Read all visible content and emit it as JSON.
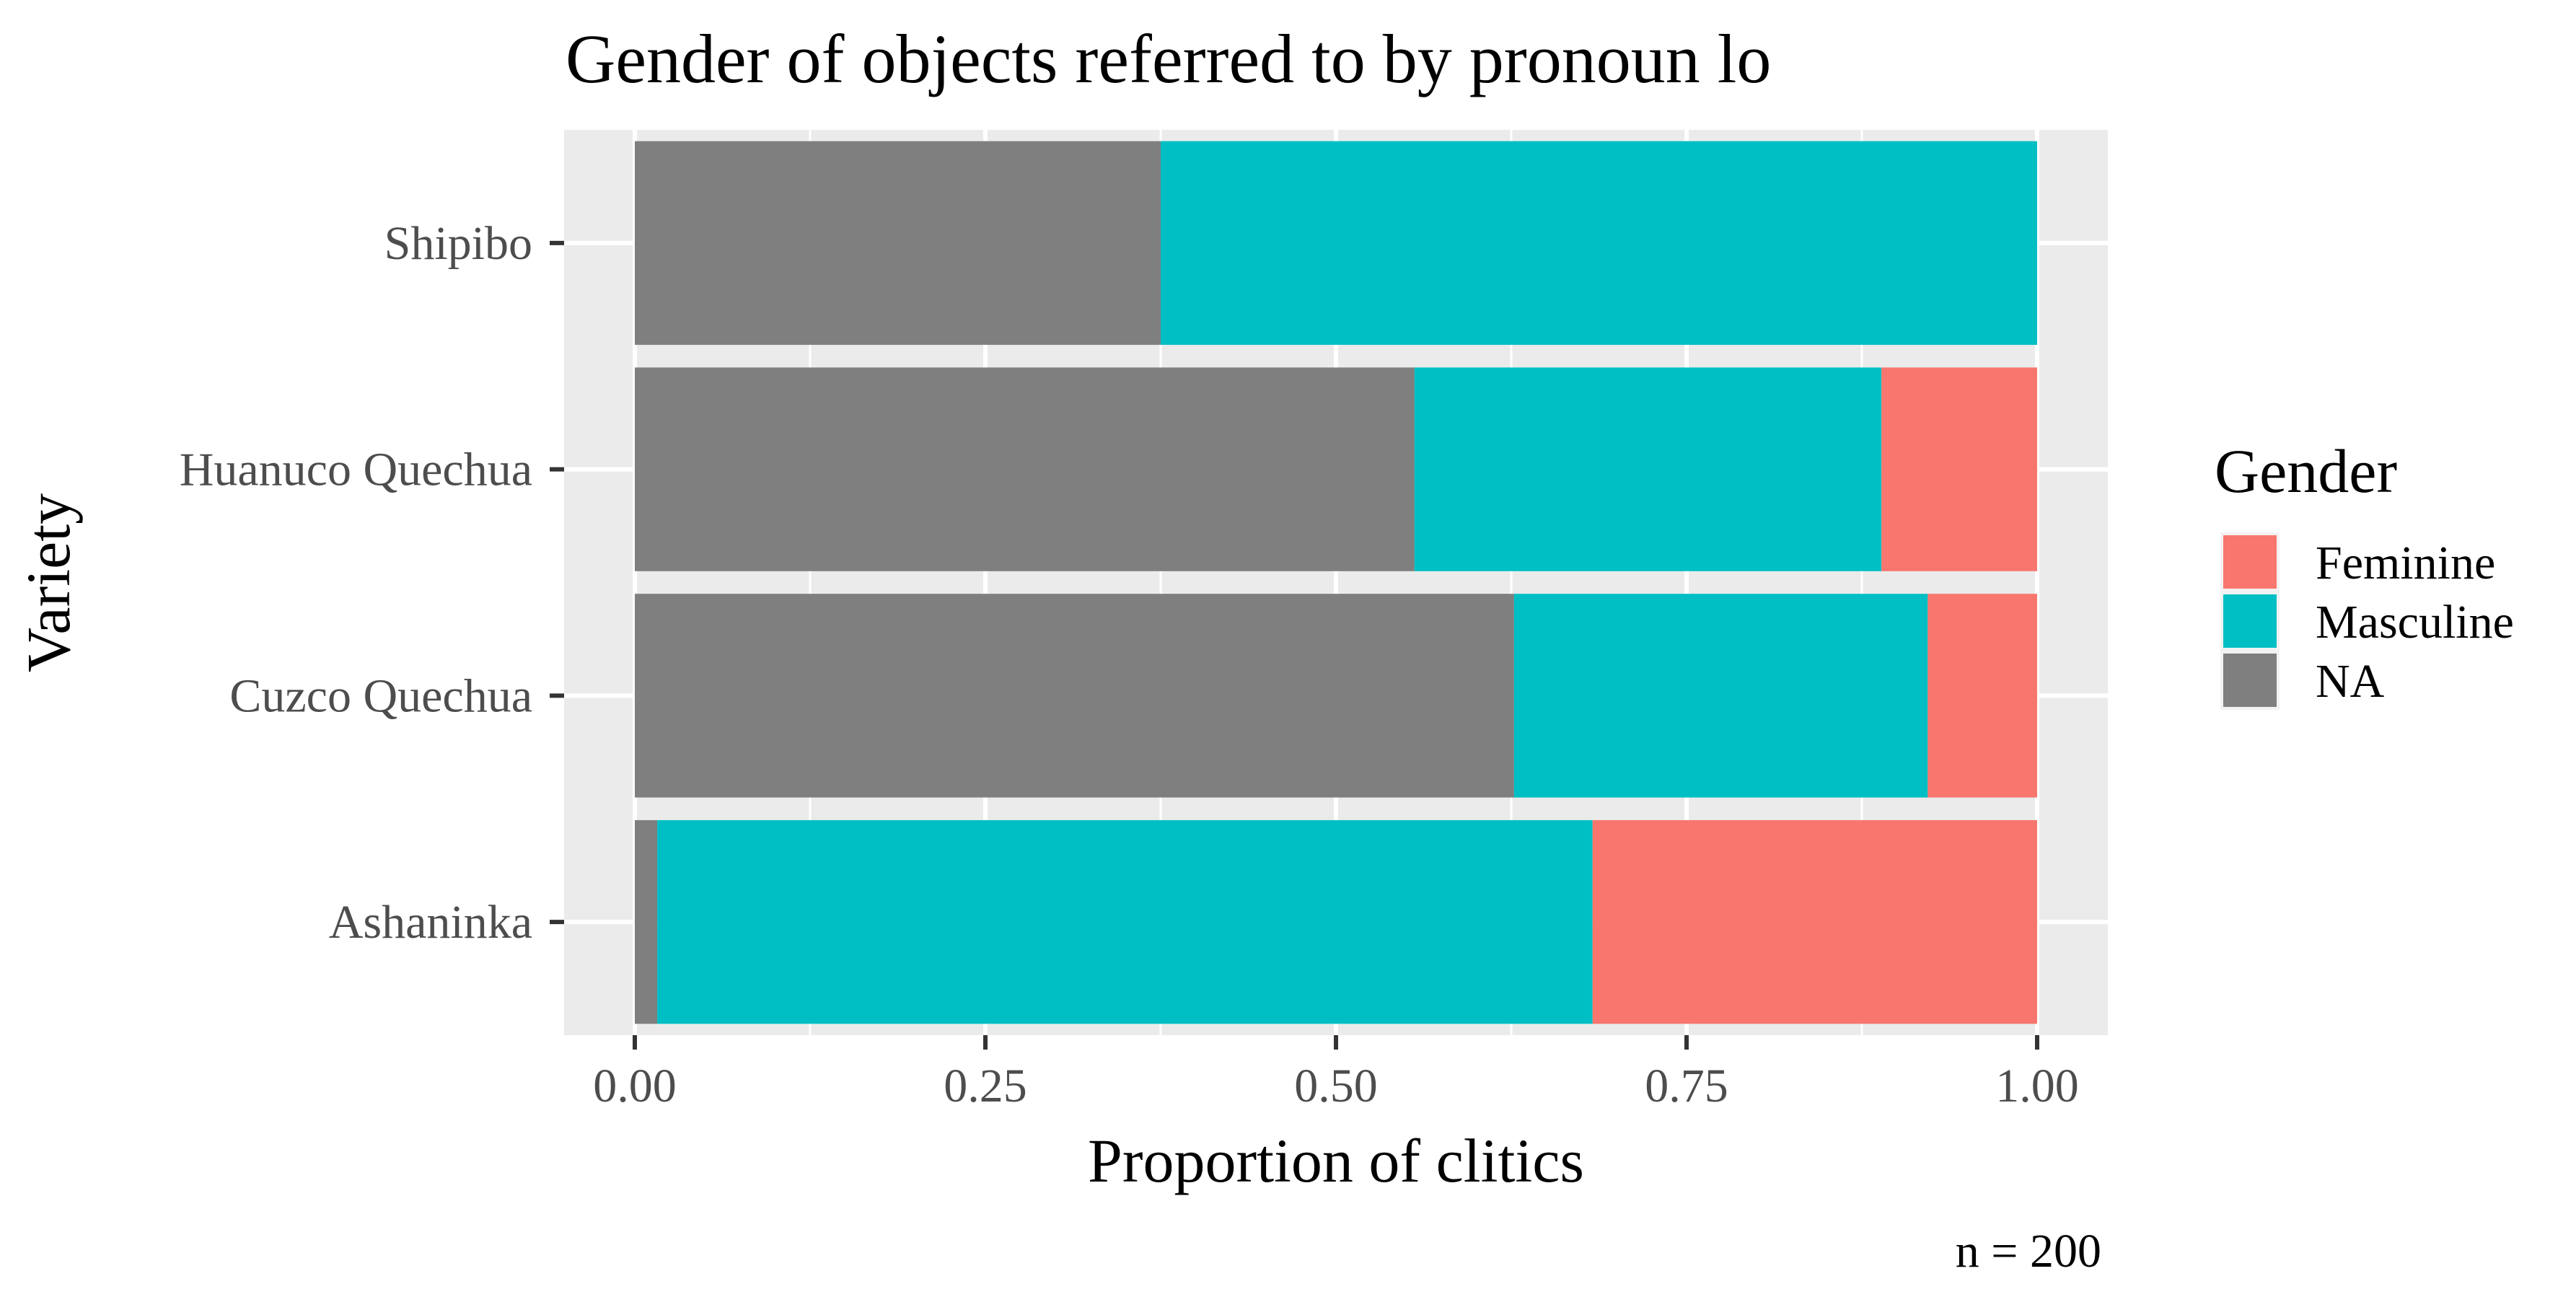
{
  "chart_data": {
    "type": "bar",
    "orientation": "horizontal",
    "stacked": true,
    "title": "Gender of objects referred to by pronoun lo",
    "xlabel": "Proportion of clitics",
    "ylabel": "Variety",
    "xlim": [
      0,
      1
    ],
    "x_ticks": [
      "0.00",
      "0.25",
      "0.50",
      "0.75",
      "1.00"
    ],
    "x_tick_values": [
      0,
      0.25,
      0.5,
      0.75,
      1.0
    ],
    "categories": [
      "Shipibo",
      "Huanuco Quechua",
      "Cuzco Quechua",
      "Ashaninka"
    ],
    "series": [
      {
        "name": "NA",
        "color": "#7f7f7f",
        "values": [
          0.375,
          0.556,
          0.627,
          0.016
        ]
      },
      {
        "name": "Masculine",
        "color": "#00bfc4",
        "values": [
          0.625,
          0.333,
          0.295,
          0.667
        ]
      },
      {
        "name": "Feminine",
        "color": "#f8766d",
        "values": [
          0.0,
          0.111,
          0.078,
          0.317
        ]
      }
    ],
    "legend": {
      "title": "Gender",
      "position": "right",
      "entries": [
        {
          "label": "Feminine",
          "color": "#f8766d"
        },
        {
          "label": "Masculine",
          "color": "#00bfc4"
        },
        {
          "label": "NA",
          "color": "#7f7f7f"
        }
      ]
    },
    "caption": "n = 200",
    "grid": true,
    "panel_background": "#ebebeb"
  }
}
